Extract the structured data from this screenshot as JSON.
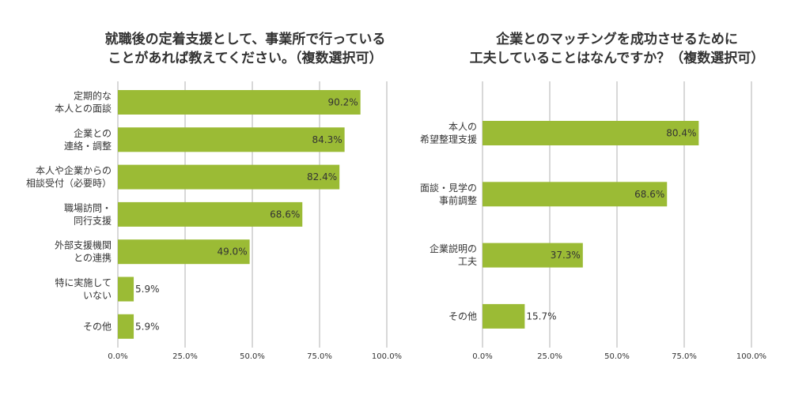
{
  "chart_data": [
    {
      "type": "bar",
      "orientation": "horizontal",
      "title_lines": [
        "就職後の定着支援として、事業所で行っている",
        "ことがあれば教えてください。（複数選択可）"
      ],
      "categories": [
        [
          "定期的な",
          "本人との面談"
        ],
        [
          "企業との",
          "連絡・調整"
        ],
        [
          "本人や企業からの",
          "相談受付（必要時）"
        ],
        [
          "職場訪問・",
          "同行支援"
        ],
        [
          "外部支援機関",
          "との連携"
        ],
        [
          "特に実施して",
          "いない"
        ],
        [
          "その他"
        ]
      ],
      "values": [
        90.2,
        84.3,
        82.4,
        68.6,
        49.0,
        5.9,
        5.9
      ],
      "value_labels": [
        "90.2%",
        "84.3%",
        "82.4%",
        "68.6%",
        "49.0%",
        "5.9%",
        "5.9%"
      ],
      "xlim": [
        0,
        100
      ],
      "x_ticks": [
        0,
        25,
        50,
        75,
        100
      ],
      "x_tick_labels": [
        "0.0%",
        "25.0%",
        "50.0%",
        "75.0%",
        "100.0%"
      ],
      "grid": true
    },
    {
      "type": "bar",
      "orientation": "horizontal",
      "title_lines": [
        "企業とのマッチングを成功させるために",
        "工夫していることはなんですか？（複数選択可）"
      ],
      "categories": [
        [
          "本人の",
          "希望整理支援"
        ],
        [
          "面談・見学の",
          "事前調整"
        ],
        [
          "企業説明の",
          "工夫"
        ],
        [
          "その他"
        ]
      ],
      "values": [
        80.4,
        68.6,
        37.3,
        15.7
      ],
      "value_labels": [
        "80.4%",
        "68.6%",
        "37.3%",
        "15.7%"
      ],
      "xlim": [
        0,
        100
      ],
      "x_ticks": [
        0,
        25,
        50,
        75,
        100
      ],
      "x_tick_labels": [
        "0.0%",
        "25.0%",
        "50.0%",
        "75.0%",
        "100.0%"
      ],
      "grid": true
    }
  ],
  "colors": {
    "bar": "#9bbb35",
    "grid": "#b0b0b0",
    "text": "#333333"
  }
}
